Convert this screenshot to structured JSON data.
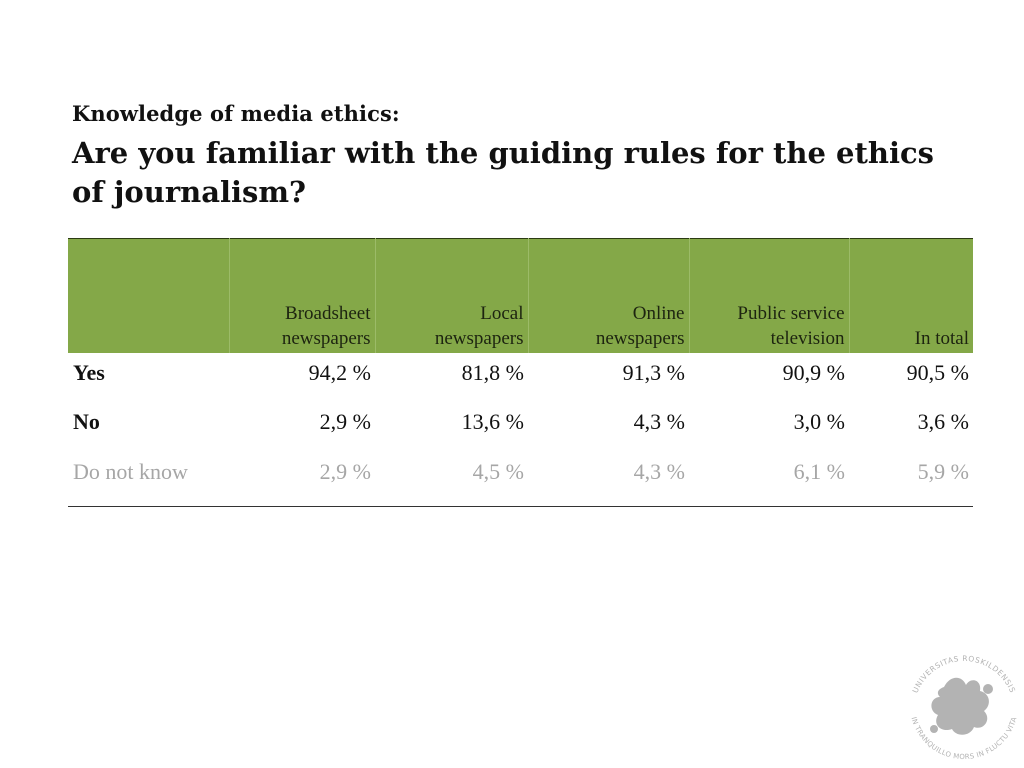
{
  "slide": {
    "subtitle": "Knowledge of media ethics:",
    "title": "Are you familiar with the guiding rules for the ethics of journalism?"
  },
  "table": {
    "columns": [
      {
        "line1": "",
        "line2": ""
      },
      {
        "line1": "Broadsheet",
        "line2": "newspapers"
      },
      {
        "line1": "Local",
        "line2": "newspapers"
      },
      {
        "line1": "Online",
        "line2": "newspapers"
      },
      {
        "line1": "Public service",
        "line2": "television"
      },
      {
        "line1": "",
        "line2": "In total"
      }
    ],
    "rows": [
      {
        "label": "Yes",
        "values": [
          "94,2 %",
          "81,8 %",
          "91,3 %",
          "90,9 %",
          "90,5 %"
        ]
      },
      {
        "label": "No",
        "values": [
          "2,9 %",
          "13,6 %",
          "4,3 %",
          "3,0 %",
          "3,6 %"
        ]
      },
      {
        "label": "Do not know",
        "values": [
          "2,9 %",
          "4,5 %",
          "4,3 %",
          "6,1 %",
          "5,9 %"
        ]
      }
    ],
    "header_color": "#84a848",
    "muted_row_color": "#a6a6a6"
  },
  "logo": {
    "text_top": "UNIVERSITAS ROSKILDENSIS",
    "text_bottom": "IN TRANQUILLO MORS IN FLUCTU VITA",
    "color": "#b3b3b3"
  }
}
